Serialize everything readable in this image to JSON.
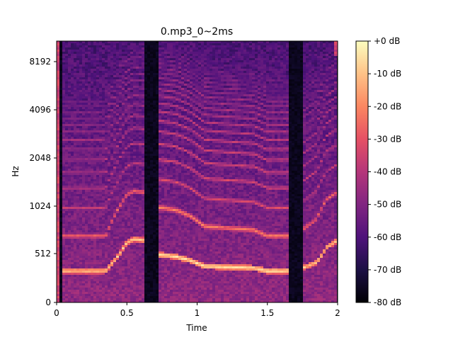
{
  "chart_data": {
    "type": "heatmap",
    "title": "0.mp3_0~2ms",
    "xlabel": "Time",
    "ylabel": "Hz",
    "xlim": [
      0,
      2.0
    ],
    "x_ticks": [
      {
        "value": 0,
        "label": "0"
      },
      {
        "value": 0.5,
        "label": "0.5"
      },
      {
        "value": 1,
        "label": "1"
      },
      {
        "value": 1.5,
        "label": "1.5"
      },
      {
        "value": 2,
        "label": "2"
      }
    ],
    "y_scale": "log2 (approx.)",
    "y_ticks": [
      {
        "value": 0,
        "label": "0"
      },
      {
        "value": 512,
        "label": "512"
      },
      {
        "value": 1024,
        "label": "1024"
      },
      {
        "value": 2048,
        "label": "2048"
      },
      {
        "value": 4096,
        "label": "4096"
      },
      {
        "value": 8192,
        "label": "8192"
      }
    ],
    "colormap": "magma",
    "colorbar": {
      "min": -80,
      "max": 0,
      "unit": "dB",
      "ticks": [
        {
          "value": 0,
          "label": "+0 dB"
        },
        {
          "value": -10,
          "label": "-10 dB"
        },
        {
          "value": -20,
          "label": "-20 dB"
        },
        {
          "value": -30,
          "label": "-30 dB"
        },
        {
          "value": -40,
          "label": "-40 dB"
        },
        {
          "value": -50,
          "label": "-50 dB"
        },
        {
          "value": -60,
          "label": "-60 dB"
        },
        {
          "value": -70,
          "label": "-70 dB"
        },
        {
          "value": -80,
          "label": "-80 dB"
        }
      ]
    },
    "silent_gaps": [
      [
        0.0,
        0.05
      ],
      [
        0.62,
        0.72
      ],
      [
        1.65,
        1.75
      ]
    ],
    "segments": [
      {
        "start": 0.05,
        "end": 0.62,
        "f0_hz": [
          [
            0.05,
            330
          ],
          [
            0.35,
            330
          ],
          [
            0.4,
            420
          ],
          [
            0.5,
            600
          ],
          [
            0.55,
            630
          ],
          [
            0.62,
            620
          ]
        ],
        "energy_db": -35
      },
      {
        "start": 0.72,
        "end": 1.65,
        "f0_hz": [
          [
            0.72,
            500
          ],
          [
            0.85,
            480
          ],
          [
            0.95,
            440
          ],
          [
            1.05,
            380
          ],
          [
            1.2,
            370
          ],
          [
            1.4,
            360
          ],
          [
            1.5,
            330
          ],
          [
            1.65,
            330
          ]
        ],
        "energy_db": -30
      },
      {
        "start": 1.75,
        "end": 2.0,
        "f0_hz": [
          [
            1.75,
            360
          ],
          [
            1.85,
            420
          ],
          [
            1.92,
            560
          ],
          [
            2.0,
            620
          ]
        ],
        "energy_db": -35
      }
    ]
  }
}
